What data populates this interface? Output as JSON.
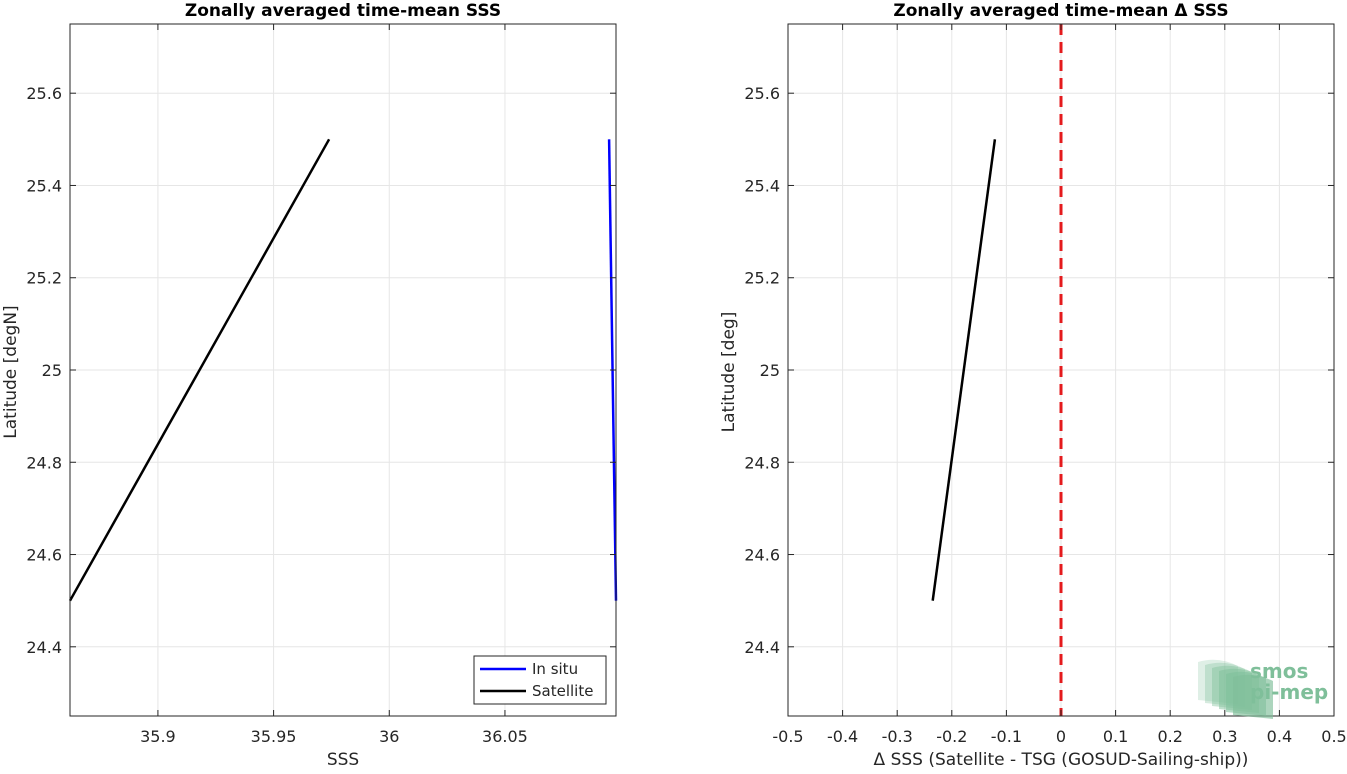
{
  "chart_data": [
    {
      "type": "line",
      "title": "Zonally averaged time-mean SSS",
      "xlabel": "SSS",
      "ylabel": "Latitude [degN]",
      "xlim": [
        35.862,
        36.098
      ],
      "ylim": [
        24.25,
        25.75
      ],
      "xticks": [
        35.9,
        35.95,
        36,
        36.05
      ],
      "xtick_labels": [
        "35.9",
        "35.95",
        "36",
        "36.05"
      ],
      "yticks": [
        24.4,
        24.6,
        24.8,
        25,
        25.2,
        25.4,
        25.6
      ],
      "ytick_labels": [
        "24.4",
        "24.6",
        "24.8",
        "25",
        "25.2",
        "25.4",
        "25.6"
      ],
      "grid": true,
      "legend_position": "bottom-right",
      "series": [
        {
          "name": "In situ",
          "color": "#0000ff",
          "x": [
            36.095,
            36.098
          ],
          "y": [
            25.5,
            24.5
          ]
        },
        {
          "name": "Satellite",
          "color": "#000000",
          "x": [
            35.974,
            35.862
          ],
          "y": [
            25.5,
            24.5
          ]
        }
      ]
    },
    {
      "type": "line",
      "title": "Zonally averaged time-mean Δ SSS",
      "xlabel": "Δ SSS (Satellite - TSG (GOSUD-Sailing-ship))",
      "ylabel": "Latitude [deg]",
      "xlim": [
        -0.5,
        0.5
      ],
      "ylim": [
        24.25,
        25.75
      ],
      "xticks": [
        -0.5,
        -0.4,
        -0.3,
        -0.2,
        -0.1,
        0,
        0.1,
        0.2,
        0.3,
        0.4,
        0.5
      ],
      "xtick_labels": [
        "-0.5",
        "-0.4",
        "-0.3",
        "-0.2",
        "-0.1",
        "0",
        "0.1",
        "0.2",
        "0.3",
        "0.4",
        "0.5"
      ],
      "yticks": [
        24.4,
        24.6,
        24.8,
        25,
        25.2,
        25.4,
        25.6
      ],
      "ytick_labels": [
        "24.4",
        "24.6",
        "24.8",
        "25",
        "25.2",
        "25.4",
        "25.6"
      ],
      "grid": true,
      "reference_line": {
        "x": 0,
        "color": "#e41a1c",
        "style": "dashed"
      },
      "series": [
        {
          "color": "#000000",
          "x": [
            -0.121,
            -0.235
          ],
          "y": [
            25.5,
            24.5
          ]
        }
      ]
    }
  ],
  "logo": {
    "line1": "smos",
    "line2": "pi-mep",
    "color": "#7fbf9a"
  }
}
